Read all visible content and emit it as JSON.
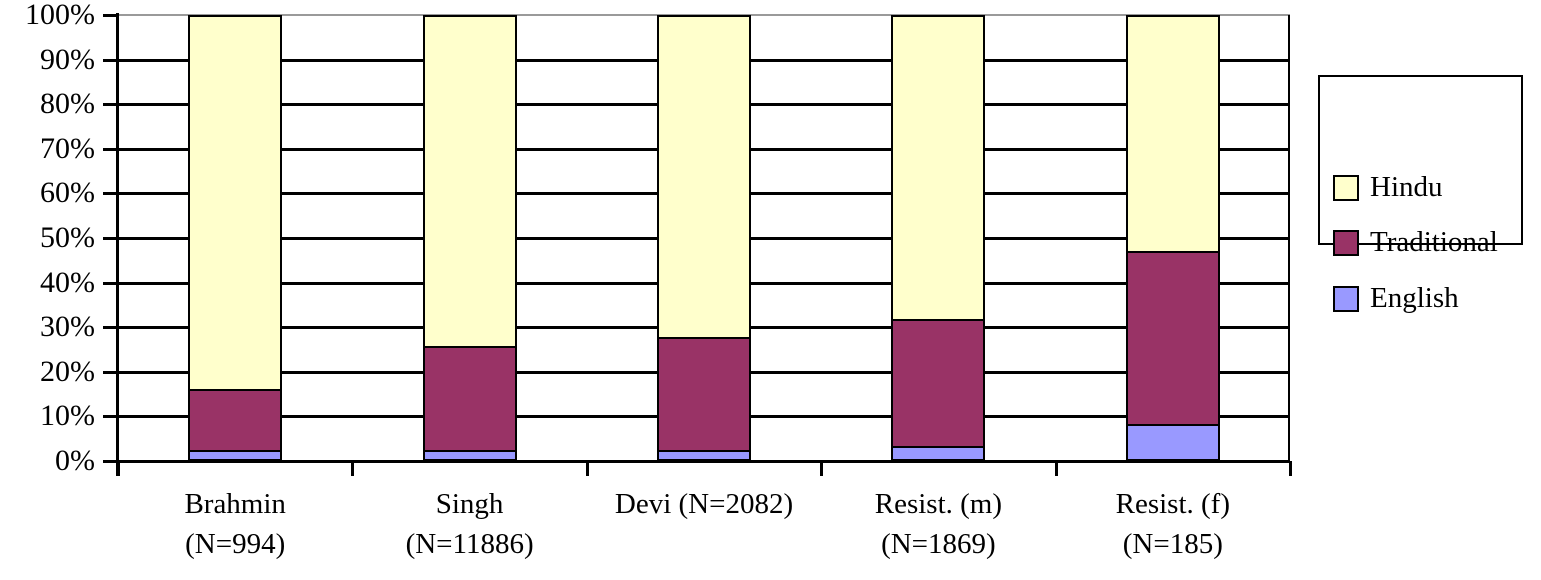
{
  "chart_data": {
    "type": "bar",
    "variant": "100-percent-stacked-column",
    "title": "",
    "xlabel": "",
    "ylabel": "",
    "ylim": [
      0,
      100
    ],
    "ytick_step": 10,
    "ytick_suffix": "%",
    "grid": true,
    "categories": [
      {
        "line1": "Brahmin",
        "line2": "(N=994)"
      },
      {
        "line1": "Singh",
        "line2": "(N=11886)"
      },
      {
        "line1": "Devi (N=2082)",
        "line2": ""
      },
      {
        "line1": "Resist. (m)",
        "line2": "(N=1869)"
      },
      {
        "line1": "Resist. (f)",
        "line2": "(N=185)"
      }
    ],
    "series": [
      {
        "name": "English",
        "color": "#9999FF",
        "values": [
          1.5,
          1.5,
          1.5,
          2.5,
          7.5
        ]
      },
      {
        "name": "Traditional",
        "color": "#993366",
        "values": [
          13.5,
          23.5,
          25.5,
          28.5,
          39
        ]
      },
      {
        "name": "Hindu",
        "color": "#FFFFCC",
        "values": [
          85,
          75,
          73,
          69,
          53.5
        ]
      }
    ],
    "legend": {
      "position": "right",
      "entries": [
        {
          "label": "Hindu",
          "color": "#FFFFCC"
        },
        {
          "label": "Traditional",
          "color": "#993366"
        },
        {
          "label": "English",
          "color": "#9999FF"
        }
      ]
    },
    "colors": {
      "gridline": "#000000",
      "top_gridline": "#9a9a9a",
      "axis": "#000000",
      "background": "#ffffff"
    }
  }
}
